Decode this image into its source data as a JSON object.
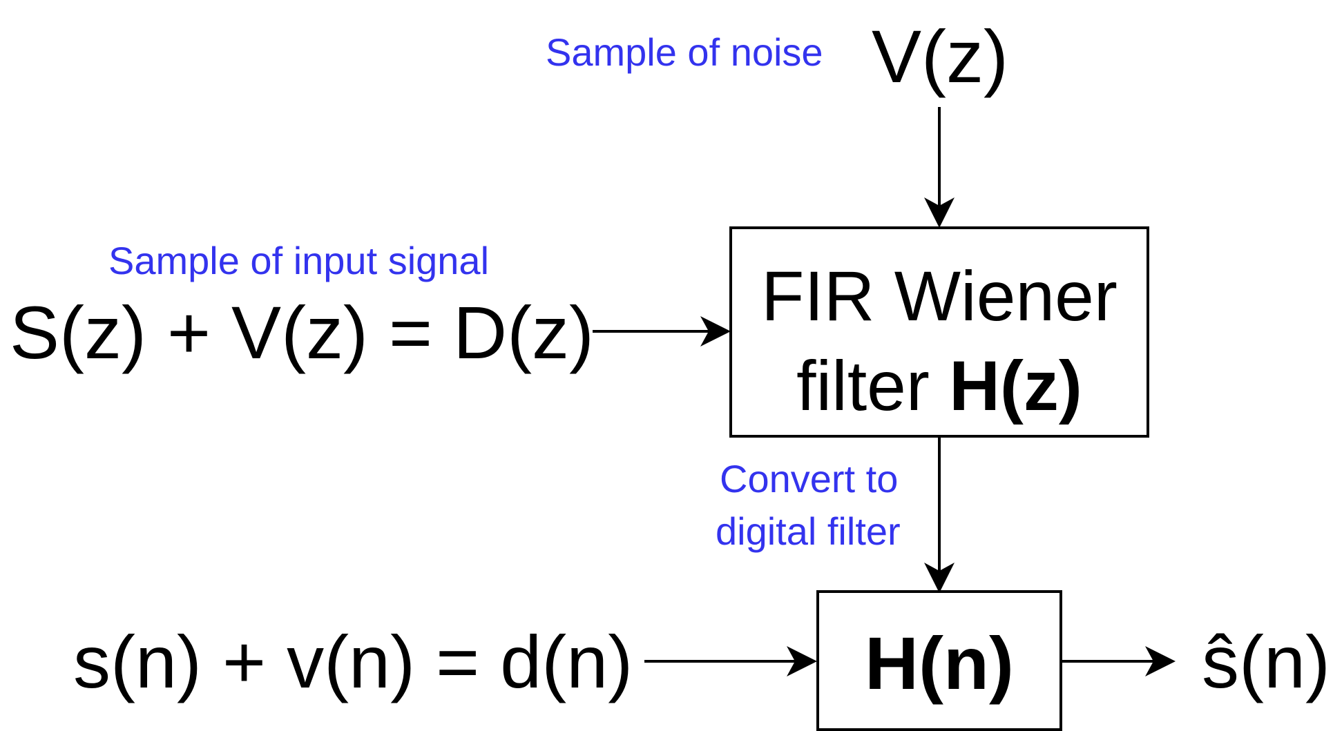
{
  "colors": {
    "annotation": "#3333ee",
    "stroke": "#000000"
  },
  "noise": {
    "annotation": "Sample of noise",
    "symbol": "V(z)"
  },
  "input": {
    "annotation": "Sample of input signal",
    "equation": "S(z) + V(z) = D(z)"
  },
  "wiener_box": {
    "line1": "FIR Wiener",
    "line2_prefix": "filter ",
    "line2_bold": "H(z)"
  },
  "convert": {
    "line1": "Convert to",
    "line2": "digital filter"
  },
  "digital": {
    "equation": "s(n) + v(n) = d(n)",
    "box_label": "H(n)",
    "output": "ŝ(n)"
  }
}
